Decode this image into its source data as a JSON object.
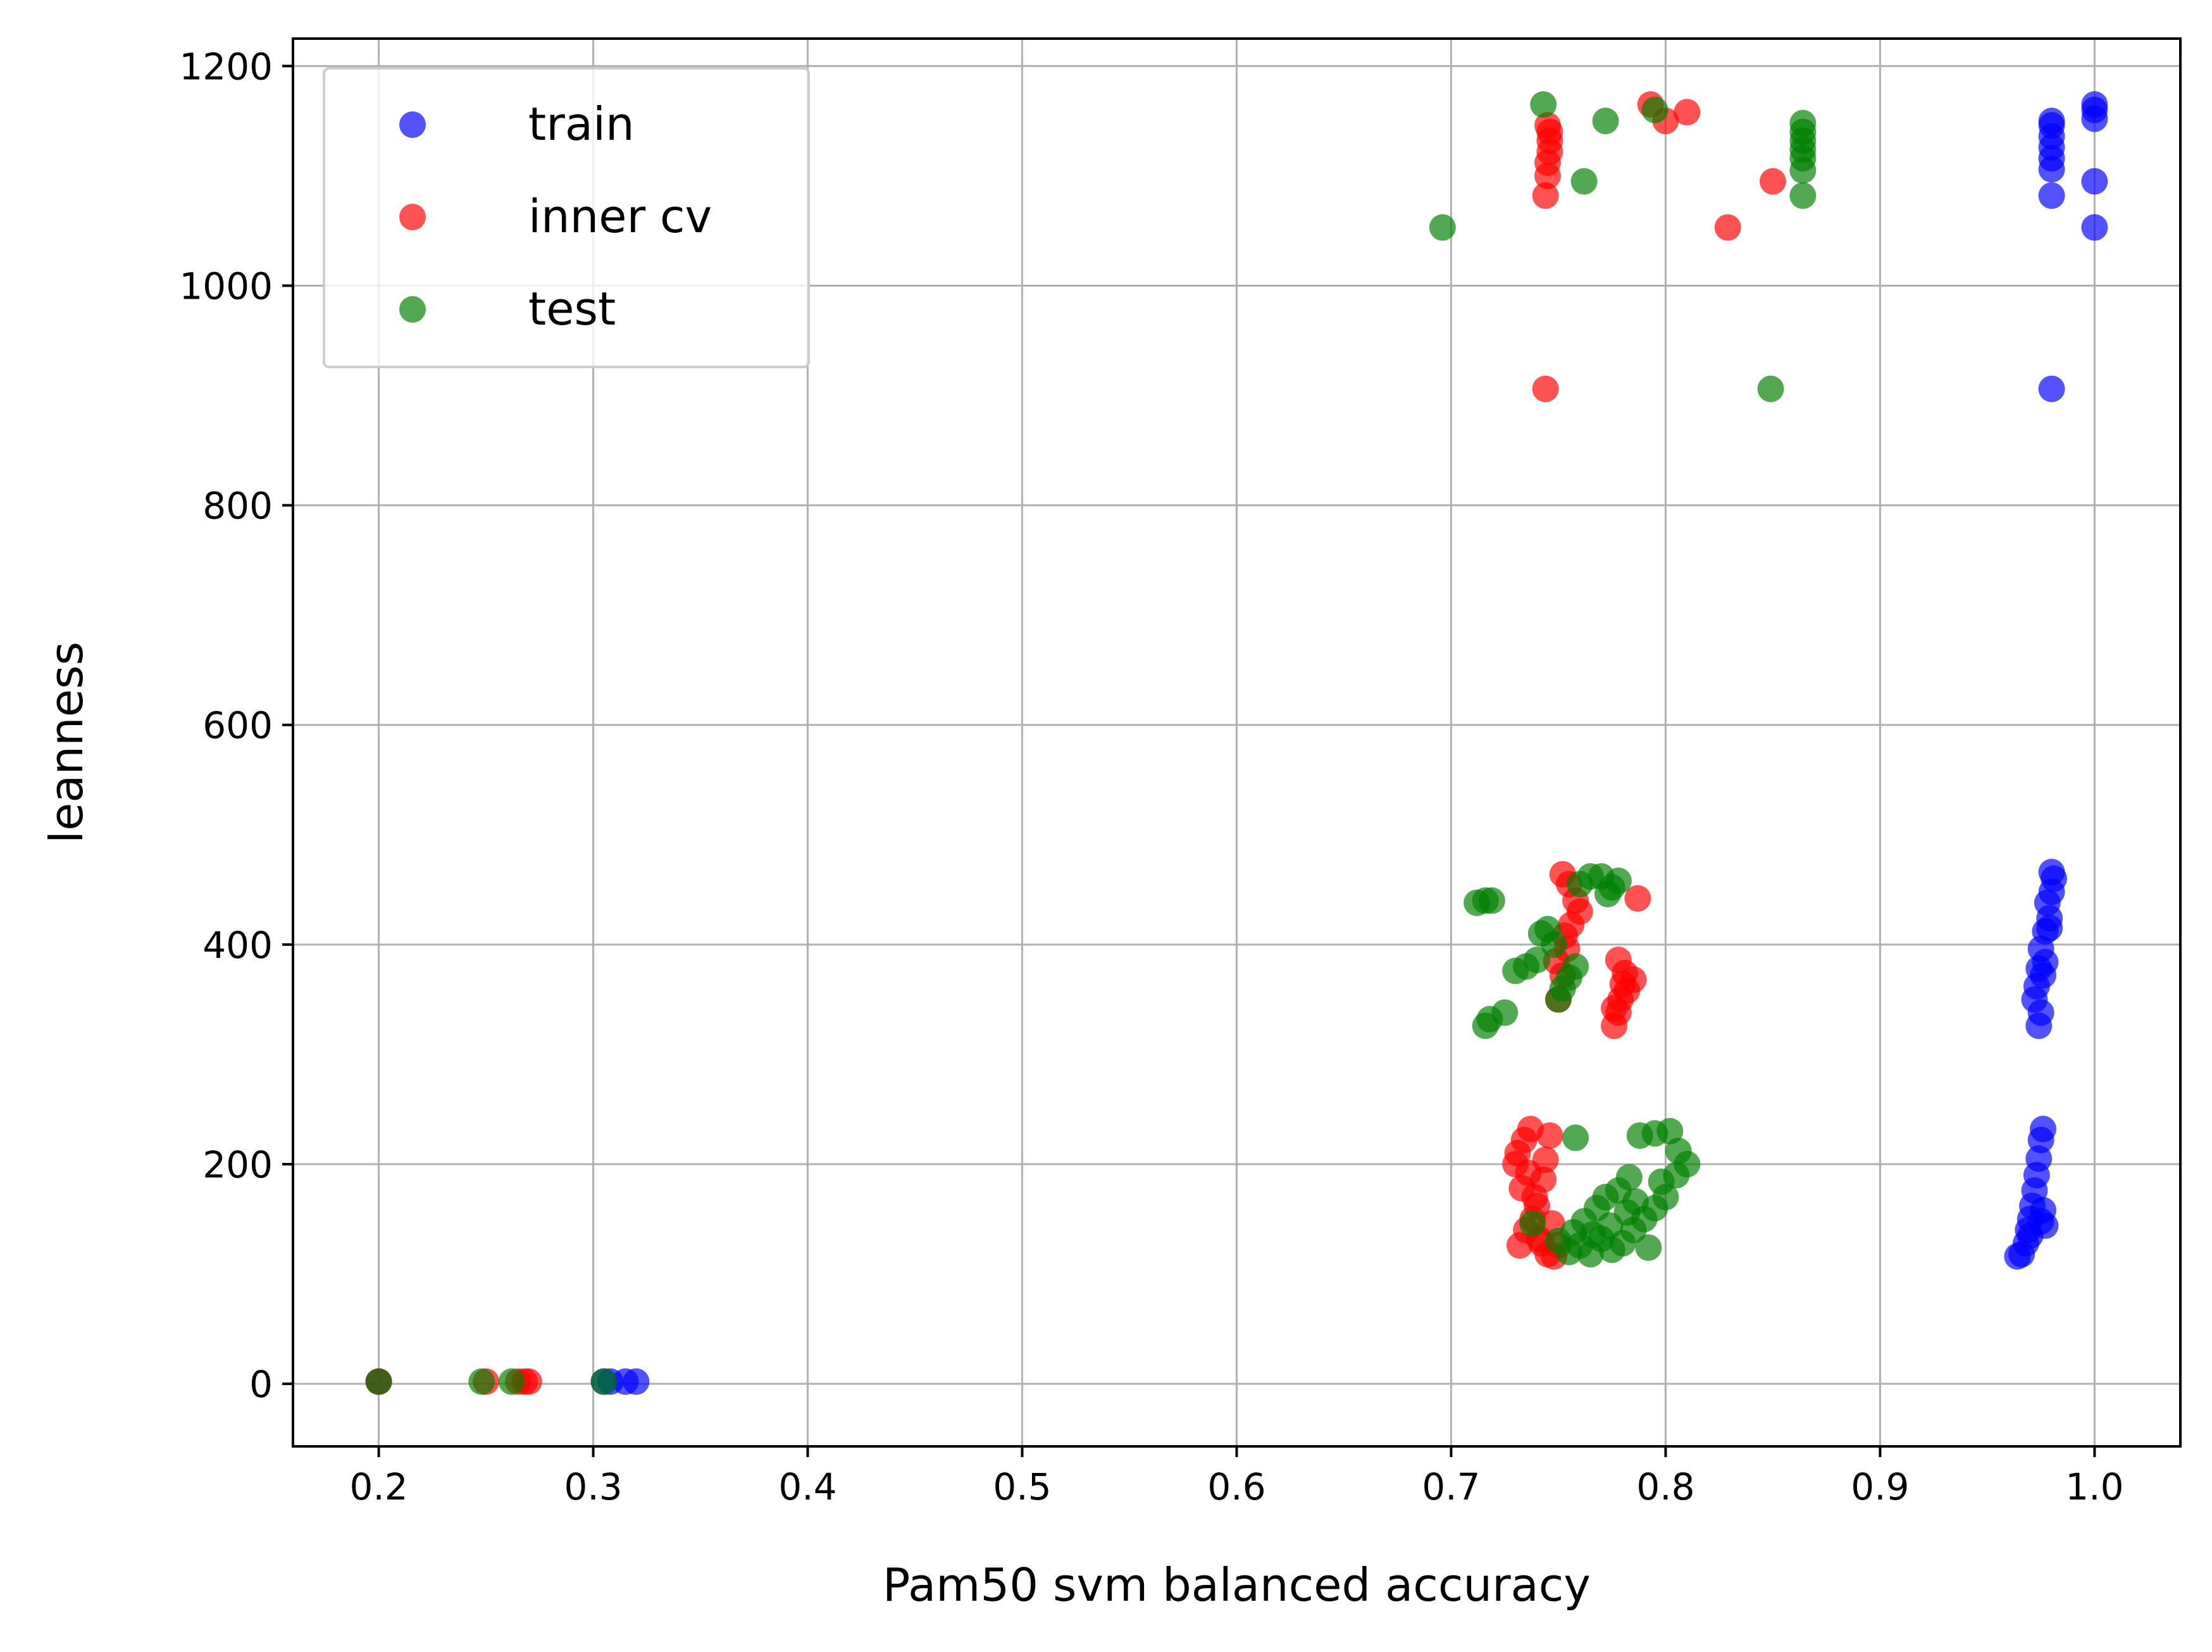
{
  "chart_data": {
    "type": "scatter",
    "title": "",
    "xlabel": "Pam50 svm balanced accuracy",
    "ylabel": "leanness",
    "xlim": [
      0.16,
      1.04
    ],
    "ylim": [
      -57,
      1225
    ],
    "x_ticks": [
      0.2,
      0.3,
      0.4,
      0.5,
      0.6,
      0.7,
      0.8,
      0.9,
      1.0
    ],
    "x_tick_labels": [
      "0.2",
      "0.3",
      "0.4",
      "0.5",
      "0.6",
      "0.7",
      "0.8",
      "0.9",
      "1.0"
    ],
    "y_ticks": [
      0,
      200,
      400,
      600,
      800,
      1000,
      1200
    ],
    "y_tick_labels": [
      "0",
      "200",
      "400",
      "600",
      "800",
      "1000",
      "1200"
    ],
    "grid": true,
    "legend_position": "top-left",
    "series": [
      {
        "name": "train",
        "color": "#0000ff",
        "points": [
          [
            0.2,
            2
          ],
          [
            0.305,
            2
          ],
          [
            0.308,
            2
          ],
          [
            0.315,
            2
          ],
          [
            0.32,
            2
          ],
          [
            0.964,
            116
          ],
          [
            0.966,
            118
          ],
          [
            0.968,
            128
          ],
          [
            0.969,
            140
          ],
          [
            0.97,
            150
          ],
          [
            0.971,
            162
          ],
          [
            0.972,
            176
          ],
          [
            0.973,
            190
          ],
          [
            0.974,
            205
          ],
          [
            0.975,
            222
          ],
          [
            0.976,
            232
          ],
          [
            0.977,
            144
          ],
          [
            0.976,
            158
          ],
          [
            0.97,
            135
          ],
          [
            0.975,
            148
          ],
          [
            0.974,
            326
          ],
          [
            0.975,
            338
          ],
          [
            0.972,
            350
          ],
          [
            0.973,
            362
          ],
          [
            0.976,
            372
          ],
          [
            0.977,
            384
          ],
          [
            0.975,
            396
          ],
          [
            0.977,
            412
          ],
          [
            0.979,
            424
          ],
          [
            0.978,
            438
          ],
          [
            0.98,
            448
          ],
          [
            0.981,
            460
          ],
          [
            0.98,
            466
          ],
          [
            0.979,
            415
          ],
          [
            0.974,
            378
          ],
          [
            0.98,
            906
          ],
          [
            0.98,
            1082
          ],
          [
            0.98,
            1106
          ],
          [
            0.98,
            1116
          ],
          [
            0.98,
            1126
          ],
          [
            0.98,
            1136
          ],
          [
            0.98,
            1146
          ],
          [
            0.98,
            1150
          ],
          [
            1.0,
            1053
          ],
          [
            1.0,
            1095
          ],
          [
            1.0,
            1152
          ],
          [
            1.0,
            1160
          ],
          [
            1.0,
            1165
          ]
        ]
      },
      {
        "name": "inner cv",
        "color": "#ff0000",
        "points": [
          [
            0.2,
            2
          ],
          [
            0.25,
            2
          ],
          [
            0.265,
            2
          ],
          [
            0.268,
            2
          ],
          [
            0.27,
            2
          ],
          [
            0.732,
            126
          ],
          [
            0.735,
            140
          ],
          [
            0.738,
            150
          ],
          [
            0.74,
            162
          ],
          [
            0.733,
            178
          ],
          [
            0.736,
            192
          ],
          [
            0.731,
            210
          ],
          [
            0.734,
            222
          ],
          [
            0.737,
            232
          ],
          [
            0.742,
            128
          ],
          [
            0.745,
            118
          ],
          [
            0.748,
            116
          ],
          [
            0.75,
            126
          ],
          [
            0.744,
            204
          ],
          [
            0.746,
            226
          ],
          [
            0.739,
            170
          ],
          [
            0.743,
            186
          ],
          [
            0.747,
            146
          ],
          [
            0.73,
            200
          ],
          [
            0.741,
            132
          ],
          [
            0.75,
            350
          ],
          [
            0.752,
            372
          ],
          [
            0.754,
            396
          ],
          [
            0.756,
            418
          ],
          [
            0.758,
            440
          ],
          [
            0.752,
            464
          ],
          [
            0.755,
            455
          ],
          [
            0.76,
            430
          ],
          [
            0.749,
            385
          ],
          [
            0.753,
            408
          ],
          [
            0.776,
            326
          ],
          [
            0.778,
            338
          ],
          [
            0.779,
            350
          ],
          [
            0.78,
            364
          ],
          [
            0.781,
            374
          ],
          [
            0.778,
            386
          ],
          [
            0.776,
            342
          ],
          [
            0.782,
            358
          ],
          [
            0.785,
            368
          ],
          [
            0.787,
            442
          ],
          [
            0.744,
            906
          ],
          [
            0.744,
            1082
          ],
          [
            0.745,
            1100
          ],
          [
            0.745,
            1112
          ],
          [
            0.746,
            1122
          ],
          [
            0.746,
            1132
          ],
          [
            0.746,
            1140
          ],
          [
            0.745,
            1146
          ],
          [
            0.793,
            1165
          ],
          [
            0.8,
            1150
          ],
          [
            0.81,
            1158
          ],
          [
            0.829,
            1053
          ],
          [
            0.85,
            1095
          ]
        ]
      },
      {
        "name": "test",
        "color": "#008000",
        "points": [
          [
            0.2,
            2
          ],
          [
            0.248,
            2
          ],
          [
            0.262,
            2
          ],
          [
            0.305,
            2
          ],
          [
            0.738,
            146
          ],
          [
            0.755,
            120
          ],
          [
            0.76,
            126
          ],
          [
            0.765,
            118
          ],
          [
            0.77,
            132
          ],
          [
            0.775,
            122
          ],
          [
            0.78,
            128
          ],
          [
            0.785,
            140
          ],
          [
            0.79,
            150
          ],
          [
            0.795,
            160
          ],
          [
            0.8,
            170
          ],
          [
            0.805,
            190
          ],
          [
            0.81,
            200
          ],
          [
            0.802,
            230
          ],
          [
            0.795,
            228
          ],
          [
            0.788,
            226
          ],
          [
            0.806,
            212
          ],
          [
            0.798,
            184
          ],
          [
            0.792,
            124
          ],
          [
            0.758,
            224
          ],
          [
            0.762,
            148
          ],
          [
            0.768,
            160
          ],
          [
            0.772,
            170
          ],
          [
            0.778,
            176
          ],
          [
            0.783,
            188
          ],
          [
            0.766,
            136
          ],
          [
            0.774,
            144
          ],
          [
            0.782,
            156
          ],
          [
            0.786,
            166
          ],
          [
            0.75,
            130
          ],
          [
            0.757,
            138
          ],
          [
            0.712,
            438
          ],
          [
            0.716,
            440
          ],
          [
            0.719,
            440
          ],
          [
            0.716,
            326
          ],
          [
            0.718,
            332
          ],
          [
            0.725,
            338
          ],
          [
            0.73,
            376
          ],
          [
            0.735,
            380
          ],
          [
            0.74,
            386
          ],
          [
            0.742,
            410
          ],
          [
            0.745,
            414
          ],
          [
            0.748,
            400
          ],
          [
            0.75,
            350
          ],
          [
            0.752,
            360
          ],
          [
            0.755,
            370
          ],
          [
            0.758,
            380
          ],
          [
            0.76,
            455
          ],
          [
            0.765,
            462
          ],
          [
            0.77,
            462
          ],
          [
            0.773,
            446
          ],
          [
            0.778,
            458
          ],
          [
            0.775,
            452
          ],
          [
            0.849,
            906
          ],
          [
            0.696,
            1053
          ],
          [
            0.743,
            1165
          ],
          [
            0.762,
            1095
          ],
          [
            0.772,
            1150
          ],
          [
            0.795,
            1160
          ],
          [
            0.864,
            1082
          ],
          [
            0.864,
            1105
          ],
          [
            0.864,
            1116
          ],
          [
            0.864,
            1124
          ],
          [
            0.864,
            1132
          ],
          [
            0.864,
            1140
          ],
          [
            0.864,
            1148
          ]
        ]
      }
    ]
  }
}
